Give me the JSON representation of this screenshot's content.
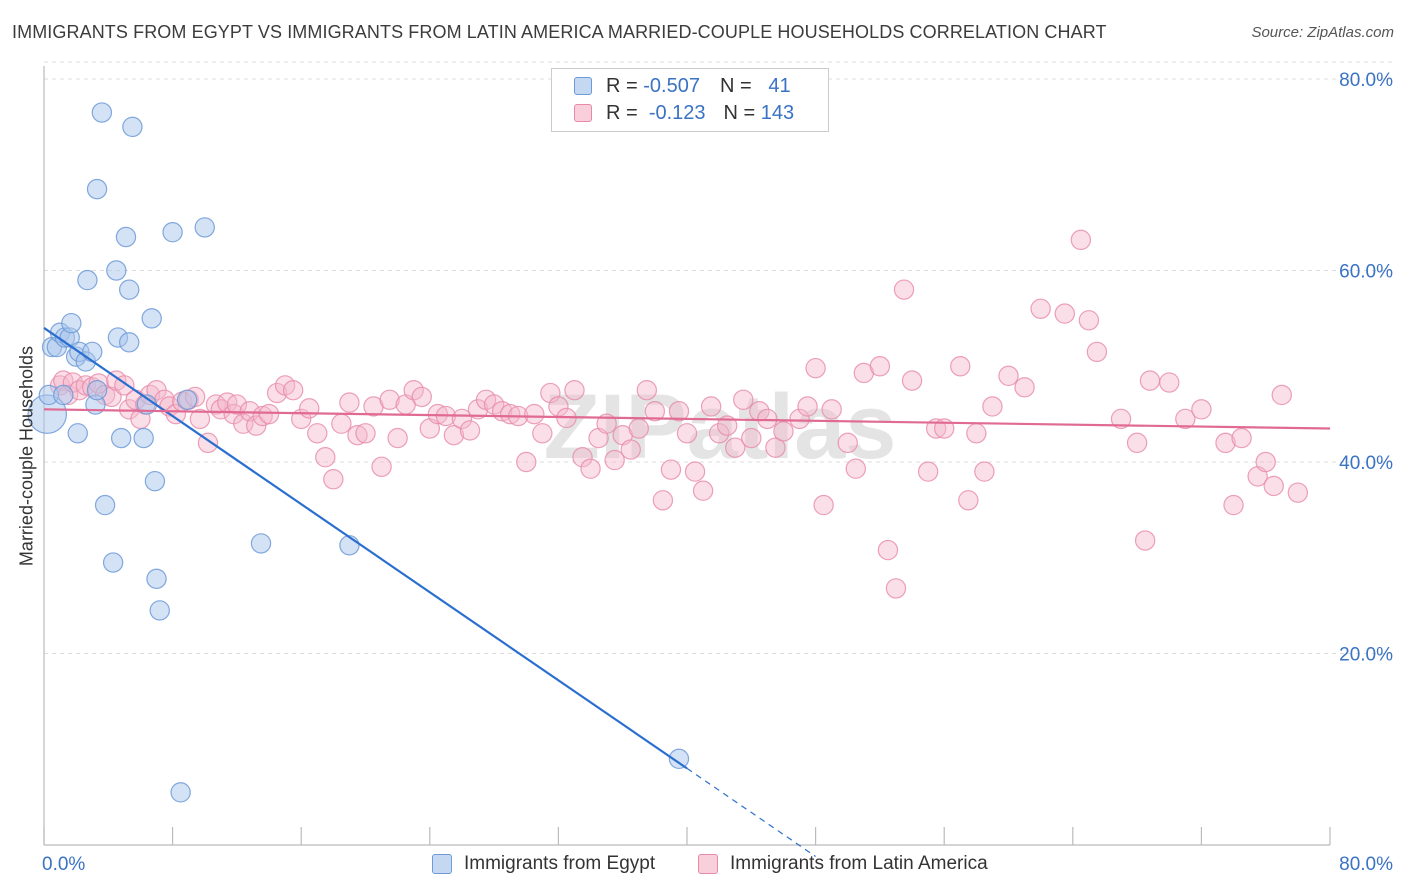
{
  "title": "IMMIGRANTS FROM EGYPT VS IMMIGRANTS FROM LATIN AMERICA MARRIED-COUPLE HOUSEHOLDS CORRELATION CHART",
  "source": "Source: ZipAtlas.com",
  "watermark": "ZIPatlas",
  "legend": {
    "rows": [
      {
        "r_label": "R =",
        "r_value": "-0.507",
        "n_label": "N =",
        "n_value": "41"
      },
      {
        "r_label": "R =",
        "r_value": "-0.123",
        "n_label": "N =",
        "n_value": "143"
      }
    ]
  },
  "bottom_legend": [
    "Immigrants from Egypt",
    "Immigrants from Latin America"
  ],
  "colors": {
    "egypt_fill": "#a9c6ec",
    "egypt_stroke": "#6d9ad8",
    "egypt_line": "#2a6fd0",
    "latin_fill": "#f5b8cb",
    "latin_stroke": "#e78aa8",
    "latin_line": "#e06a93",
    "tick_label": "#3a72c4",
    "grid": "#dddddd"
  },
  "chart_data": {
    "type": "scatter",
    "xlabel": "",
    "ylabel": "Married-couple Households",
    "xlim": [
      0,
      80
    ],
    "ylim": [
      0,
      82
    ],
    "x_ticks_labeled": [
      "0.0%",
      "80.0%"
    ],
    "y_ticks": [
      {
        "value": 20,
        "label": "20.0%"
      },
      {
        "value": 40,
        "label": "40.0%"
      },
      {
        "value": 60,
        "label": "60.0%"
      },
      {
        "value": 80,
        "label": "80.0%"
      }
    ],
    "grid": true,
    "legend_position": "top-center",
    "series": [
      {
        "name": "Immigrants from Egypt",
        "R": -0.507,
        "N": 41,
        "trend": {
          "x0": 0,
          "y0": 54.0,
          "x1": 40,
          "y1": 8.0,
          "dash_to_x": 48
        },
        "points": [
          [
            0.2,
            45.0,
            24
          ],
          [
            0.3,
            47.0,
            12
          ],
          [
            0.5,
            52.0,
            12
          ],
          [
            0.8,
            52.0,
            12
          ],
          [
            1.0,
            53.5,
            12
          ],
          [
            1.3,
            53.0,
            12
          ],
          [
            1.6,
            53.0,
            12
          ],
          [
            1.7,
            54.5,
            12
          ],
          [
            2.0,
            51.0,
            12
          ],
          [
            2.2,
            51.5,
            12
          ],
          [
            2.6,
            50.5,
            12
          ],
          [
            3.0,
            51.5,
            12
          ],
          [
            2.1,
            43.0,
            12
          ],
          [
            3.2,
            46.0,
            12
          ],
          [
            3.3,
            47.5,
            12
          ],
          [
            3.8,
            35.5,
            12
          ],
          [
            4.3,
            29.5,
            12
          ],
          [
            4.6,
            53.0,
            12
          ],
          [
            4.8,
            42.5,
            12
          ],
          [
            5.3,
            52.5,
            12
          ],
          [
            6.2,
            42.5,
            12
          ],
          [
            6.4,
            46.0,
            12
          ],
          [
            6.7,
            55.0,
            12
          ],
          [
            6.9,
            38.0,
            12
          ],
          [
            7.0,
            27.8,
            12
          ],
          [
            7.2,
            24.5,
            12
          ],
          [
            3.3,
            68.5,
            12
          ],
          [
            3.6,
            76.5,
            12
          ],
          [
            5.5,
            75.0,
            12
          ],
          [
            5.1,
            63.5,
            12
          ],
          [
            4.5,
            60.0,
            12
          ],
          [
            5.3,
            58.0,
            12
          ],
          [
            2.7,
            59.0,
            12
          ],
          [
            8.0,
            64.0,
            12
          ],
          [
            10.0,
            64.5,
            12
          ],
          [
            8.5,
            5.5,
            12
          ],
          [
            8.9,
            46.5,
            12
          ],
          [
            13.5,
            31.5,
            12
          ],
          [
            19.0,
            31.3,
            12
          ],
          [
            39.5,
            9.0,
            12
          ],
          [
            1.2,
            47.0,
            12
          ]
        ]
      },
      {
        "name": "Immigrants from Latin America",
        "R": -0.123,
        "N": 143,
        "trend": {
          "x0": 0,
          "y0": 45.5,
          "x1": 80,
          "y1": 43.5
        },
        "points": [
          [
            1.0,
            48.0,
            12
          ],
          [
            1.2,
            48.5,
            12
          ],
          [
            1.5,
            47.0,
            12
          ],
          [
            1.8,
            48.3,
            12
          ],
          [
            2.2,
            47.5,
            12
          ],
          [
            2.6,
            48.0,
            12
          ],
          [
            3.0,
            47.8,
            12
          ],
          [
            3.4,
            48.2,
            12
          ],
          [
            3.8,
            47.0,
            12
          ],
          [
            4.2,
            46.8,
            12
          ],
          [
            4.5,
            48.5,
            12
          ],
          [
            5.0,
            48.0,
            12
          ],
          [
            5.3,
            45.5,
            12
          ],
          [
            5.7,
            46.5,
            12
          ],
          [
            6.0,
            44.5,
            12
          ],
          [
            6.3,
            46.0,
            12
          ],
          [
            6.6,
            47.0,
            12
          ],
          [
            7.0,
            47.5,
            12
          ],
          [
            7.5,
            46.5,
            12
          ],
          [
            7.8,
            45.8,
            12
          ],
          [
            8.2,
            45.0,
            12
          ],
          [
            8.6,
            46.3,
            12
          ],
          [
            9.0,
            46.5,
            12
          ],
          [
            9.4,
            46.8,
            12
          ],
          [
            9.7,
            44.5,
            12
          ],
          [
            10.2,
            42.0,
            12
          ],
          [
            10.7,
            46.0,
            12
          ],
          [
            11.0,
            45.5,
            12
          ],
          [
            11.4,
            46.2,
            12
          ],
          [
            11.8,
            45.0,
            12
          ],
          [
            12.0,
            46.0,
            12
          ],
          [
            12.4,
            44.0,
            12
          ],
          [
            12.8,
            45.3,
            12
          ],
          [
            13.2,
            43.8,
            12
          ],
          [
            13.6,
            44.8,
            12
          ],
          [
            14.0,
            45.0,
            12
          ],
          [
            14.5,
            47.2,
            12
          ],
          [
            15.0,
            48.0,
            12
          ],
          [
            15.5,
            47.5,
            12
          ],
          [
            16.0,
            44.5,
            12
          ],
          [
            16.5,
            45.6,
            12
          ],
          [
            17.0,
            43.0,
            12
          ],
          [
            17.5,
            40.5,
            12
          ],
          [
            18.0,
            38.2,
            12
          ],
          [
            18.5,
            44.0,
            12
          ],
          [
            19.0,
            46.2,
            12
          ],
          [
            19.5,
            42.8,
            12
          ],
          [
            20.0,
            43.0,
            12
          ],
          [
            20.5,
            45.8,
            12
          ],
          [
            21.0,
            39.5,
            12
          ],
          [
            21.5,
            46.5,
            12
          ],
          [
            22.0,
            42.5,
            12
          ],
          [
            22.5,
            46.0,
            12
          ],
          [
            23.0,
            47.5,
            12
          ],
          [
            23.5,
            46.8,
            12
          ],
          [
            24.0,
            43.5,
            12
          ],
          [
            24.5,
            45.0,
            12
          ],
          [
            25.0,
            44.8,
            12
          ],
          [
            25.5,
            42.8,
            12
          ],
          [
            26.0,
            44.5,
            12
          ],
          [
            26.5,
            43.3,
            12
          ],
          [
            27.0,
            45.5,
            12
          ],
          [
            27.5,
            46.5,
            12
          ],
          [
            28.0,
            46.0,
            12
          ],
          [
            28.5,
            45.3,
            12
          ],
          [
            29.0,
            45.0,
            12
          ],
          [
            29.5,
            44.8,
            12
          ],
          [
            30.0,
            40.0,
            12
          ],
          [
            30.5,
            45.0,
            12
          ],
          [
            31.0,
            43.0,
            12
          ],
          [
            31.5,
            47.2,
            12
          ],
          [
            32.0,
            45.8,
            12
          ],
          [
            32.5,
            44.6,
            12
          ],
          [
            33.0,
            47.5,
            12
          ],
          [
            33.5,
            40.5,
            12
          ],
          [
            34.0,
            39.3,
            12
          ],
          [
            34.5,
            42.5,
            12
          ],
          [
            35.0,
            44.0,
            12
          ],
          [
            35.5,
            40.2,
            12
          ],
          [
            36.0,
            42.8,
            12
          ],
          [
            36.5,
            41.3,
            12
          ],
          [
            37.0,
            43.5,
            12
          ],
          [
            37.5,
            47.5,
            12
          ],
          [
            38.0,
            45.3,
            12
          ],
          [
            38.5,
            36.0,
            12
          ],
          [
            39.0,
            39.2,
            12
          ],
          [
            39.5,
            45.3,
            12
          ],
          [
            40.0,
            43.0,
            12
          ],
          [
            40.5,
            39.0,
            12
          ],
          [
            41.0,
            37.0,
            12
          ],
          [
            41.5,
            45.8,
            12
          ],
          [
            42.0,
            43.0,
            12
          ],
          [
            42.5,
            43.8,
            12
          ],
          [
            43.0,
            41.5,
            12
          ],
          [
            43.5,
            46.5,
            12
          ],
          [
            44.0,
            42.5,
            12
          ],
          [
            44.5,
            45.3,
            12
          ],
          [
            45.0,
            44.5,
            12
          ],
          [
            45.5,
            41.5,
            12
          ],
          [
            46.0,
            43.2,
            12
          ],
          [
            47.0,
            44.5,
            12
          ],
          [
            47.5,
            45.8,
            12
          ],
          [
            48.0,
            49.8,
            12
          ],
          [
            48.5,
            35.5,
            12
          ],
          [
            49.0,
            45.5,
            12
          ],
          [
            50.0,
            42.0,
            12
          ],
          [
            50.5,
            39.3,
            12
          ],
          [
            51.0,
            49.3,
            12
          ],
          [
            52.0,
            50.0,
            12
          ],
          [
            52.5,
            30.8,
            12
          ],
          [
            53.0,
            26.8,
            12
          ],
          [
            54.0,
            48.5,
            12
          ],
          [
            55.0,
            39.0,
            12
          ],
          [
            55.5,
            43.5,
            12
          ],
          [
            56.0,
            43.5,
            12
          ],
          [
            57.0,
            50.0,
            12
          ],
          [
            57.5,
            36.0,
            12
          ],
          [
            58.0,
            43.0,
            12
          ],
          [
            58.5,
            39.0,
            12
          ],
          [
            59.0,
            45.8,
            12
          ],
          [
            60.0,
            49.0,
            12
          ],
          [
            61.0,
            47.8,
            12
          ],
          [
            62.0,
            56.0,
            12
          ],
          [
            63.5,
            55.5,
            12
          ],
          [
            64.5,
            63.2,
            12
          ],
          [
            65.0,
            54.8,
            12
          ],
          [
            65.5,
            51.5,
            12
          ],
          [
            67.0,
            44.5,
            12
          ],
          [
            68.0,
            42.0,
            12
          ],
          [
            68.5,
            31.8,
            12
          ],
          [
            70.0,
            48.3,
            12
          ],
          [
            71.0,
            44.5,
            12
          ],
          [
            72.0,
            45.5,
            12
          ],
          [
            73.5,
            42.0,
            12
          ],
          [
            74.5,
            42.5,
            12
          ],
          [
            75.5,
            38.5,
            12
          ],
          [
            76.5,
            37.5,
            12
          ],
          [
            77.0,
            47.0,
            12
          ],
          [
            78.0,
            36.8,
            12
          ],
          [
            68.8,
            48.5,
            12
          ],
          [
            74.0,
            35.5,
            12
          ],
          [
            76.0,
            40.0,
            12
          ],
          [
            53.5,
            58.0,
            12
          ]
        ]
      }
    ]
  }
}
